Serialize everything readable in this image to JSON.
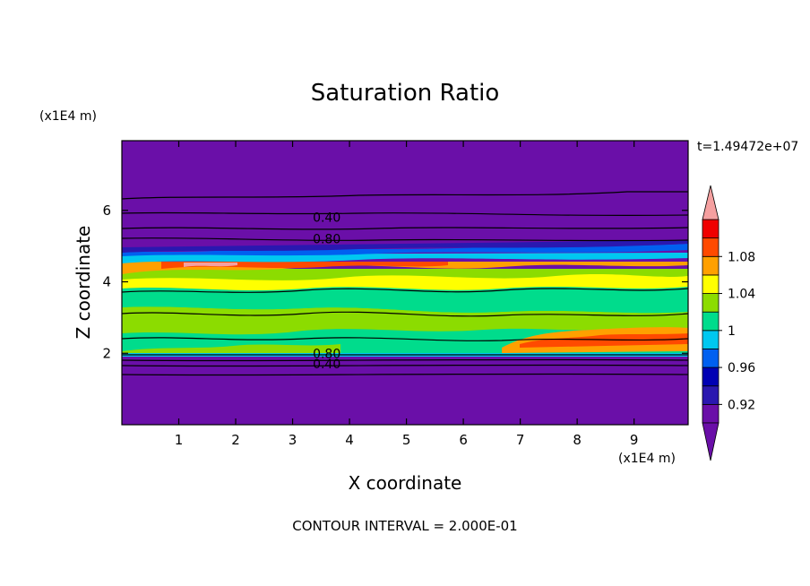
{
  "chart_data": {
    "type": "heatmap",
    "title": "Saturation Ratio",
    "xlabel": "X coordinate",
    "ylabel": "Z coordinate",
    "x_unit": "(x1E4 m)",
    "y_unit": "(x1E4 m)",
    "xlim": [
      0,
      9.95
    ],
    "ylim": [
      0,
      7.95
    ],
    "x_ticks": [
      "1",
      "2",
      "3",
      "4",
      "5",
      "6",
      "7",
      "8",
      "9"
    ],
    "y_ticks": [
      "2",
      "4",
      "6"
    ],
    "time_label": "t=1.49472e+07",
    "footer": "CONTOUR INTERVAL = 2.000E-01",
    "contour_labels": [
      {
        "text": "0.40",
        "x": 3.6,
        "z": 5.8
      },
      {
        "text": "0.80",
        "x": 3.6,
        "z": 5.2
      },
      {
        "text": "0.80",
        "x": 3.6,
        "z": 2.0
      },
      {
        "text": "0.40",
        "x": 3.6,
        "z": 1.7
      }
    ],
    "colorbar": {
      "labels": [
        "0.92",
        "0.96",
        "1",
        "1.04",
        "1.08"
      ],
      "levels": [
        0.9,
        0.92,
        0.94,
        0.96,
        0.98,
        1.0,
        1.02,
        1.04,
        1.06,
        1.08,
        1.1
      ],
      "colors": [
        "#6a0fa8",
        "#2a18b0",
        "#0000b4",
        "#0060f0",
        "#00c8f0",
        "#00dc8c",
        "#8cdc00",
        "#ffff00",
        "#ffa000",
        "#ff4a00",
        "#f00000",
        "#f5a0a0"
      ],
      "under_color": "#6a0fa8",
      "over_color": "#f5a0a0"
    },
    "layers": [
      {
        "z0": 0.0,
        "z1": 1.95,
        "value": 0.4
      },
      {
        "z0": 1.95,
        "z1": 2.15,
        "value": 1.0
      },
      {
        "z0": 2.15,
        "z1": 2.6,
        "value": 1.02
      },
      {
        "z0": 2.6,
        "z1": 3.6,
        "value": 1.0
      },
      {
        "z0": 3.6,
        "z1": 4.05,
        "value": 1.03
      },
      {
        "z0": 4.05,
        "z1": 4.55,
        "value": 1.07
      },
      {
        "z0": 4.55,
        "z1": 4.75,
        "value": 0.96
      },
      {
        "z0": 4.75,
        "z1": 5.0,
        "value": 0.92
      },
      {
        "z0": 5.0,
        "z1": 7.95,
        "value": 0.6
      }
    ]
  }
}
